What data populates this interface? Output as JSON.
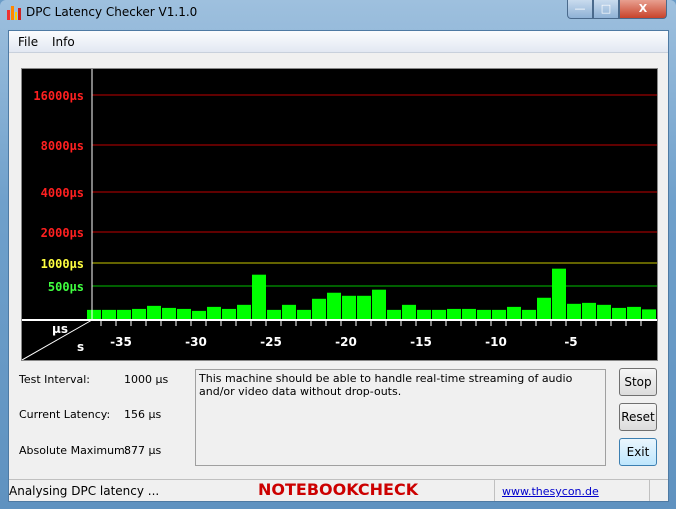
{
  "window": {
    "title": "DPC Latency Checker V1.1.0",
    "controls": [
      "minimize",
      "maximize",
      "close"
    ]
  },
  "menu": {
    "items": [
      "File",
      "Info"
    ]
  },
  "chart_data": {
    "type": "bar",
    "y_scale": "piecewise (non-linear)",
    "y_tick_labels": [
      "16000µs",
      "8000µs",
      "4000µs",
      "2000µs",
      "1000µs",
      "500µs"
    ],
    "y_tick_values": [
      16000,
      8000,
      4000,
      2000,
      1000,
      500
    ],
    "y_tick_colors": [
      "#ff2020",
      "#ff2020",
      "#ff2020",
      "#ff2020",
      "#ffff40",
      "#40ff40"
    ],
    "gridline_colors": [
      "#c00000",
      "#c00000",
      "#c00000",
      "#c00000",
      "#c8c800",
      "#00c000"
    ],
    "corner_labels": {
      "y_unit": "µs",
      "x_unit": "s"
    },
    "x_tick_labels": [
      "-35",
      "-30",
      "-25",
      "-20",
      "-15",
      "-10",
      "-5"
    ],
    "x_tick_values": [
      -35,
      -30,
      -25,
      -20,
      -15,
      -10,
      -5
    ],
    "x": [
      -38,
      -37,
      -36,
      -35,
      -34,
      -33,
      -32,
      -31,
      -30,
      -29,
      -28,
      -27,
      -26,
      -25,
      -24,
      -23,
      -22,
      -21,
      -20,
      -19,
      -18,
      -17,
      -16,
      -15,
      -14,
      -13,
      -12,
      -11,
      -10,
      -9,
      -8,
      -7,
      -6,
      -5,
      -4,
      -3,
      -2,
      -1
    ],
    "values": [
      149,
      149,
      149,
      163,
      208,
      178,
      163,
      134,
      193,
      163,
      223,
      746,
      149,
      223,
      149,
      312,
      401,
      356,
      356,
      446,
      149,
      223,
      149,
      149,
      163,
      163,
      149,
      149,
      193,
      149,
      327,
      877,
      238,
      252,
      223,
      178,
      193,
      156
    ],
    "bar_color": "#00ff00",
    "background": "#000000"
  },
  "stats": {
    "test_interval_label": "Test Interval:",
    "test_interval_value": "1000 µs",
    "current_latency_label": "Current Latency:",
    "current_latency_value": "156 µs",
    "absolute_maximum_label": "Absolute Maximum:",
    "absolute_maximum_value": "877 µs"
  },
  "message": "This machine should be able to handle real-time streaming of audio and/or video data without drop-outs.",
  "buttons": {
    "stop": "Stop",
    "reset": "Reset",
    "exit": "Exit"
  },
  "status": {
    "text": "Analysing DPC latency ...",
    "link": "www.thesycon.de"
  },
  "watermark": "NOTEBOOKCHECK"
}
